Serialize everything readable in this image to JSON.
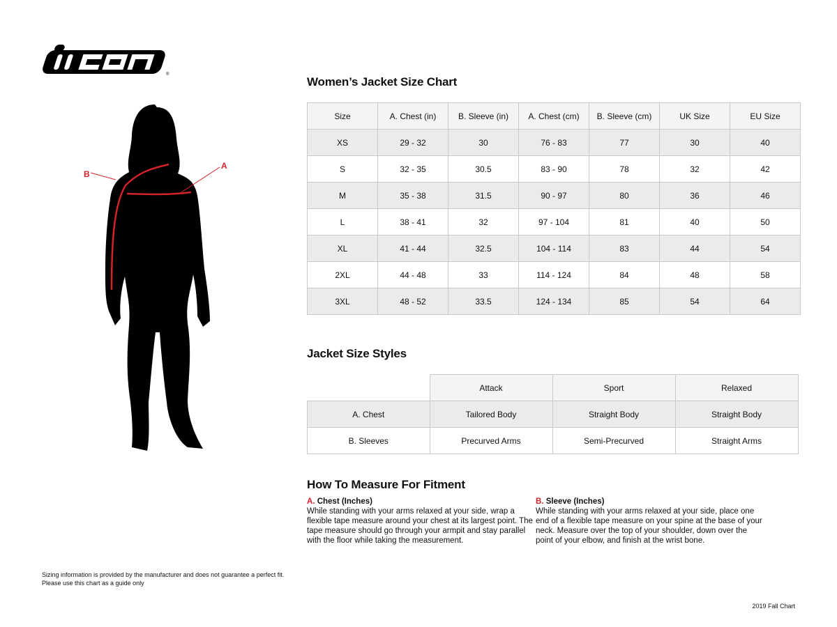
{
  "brand": {
    "logo_text": "icon"
  },
  "figure": {
    "label_a": "A",
    "label_b": "B",
    "accent_color": "#d2232a"
  },
  "size_chart": {
    "title": "Women’s Jacket Size Chart",
    "headers": [
      "Size",
      "A. Chest (in)",
      "B. Sleeve (in)",
      "A. Chest (cm)",
      "B. Sleeve (cm)",
      "UK Size",
      "EU Size"
    ],
    "rows": [
      [
        "XS",
        "29 - 32",
        "30",
        "76 - 83",
        "77",
        "30",
        "40"
      ],
      [
        "S",
        "32 - 35",
        "30.5",
        "83 - 90",
        "78",
        "32",
        "42"
      ],
      [
        "M",
        "35 - 38",
        "31.5",
        "90 - 97",
        "80",
        "36",
        "46"
      ],
      [
        "L",
        "38 - 41",
        "32",
        "97 - 104",
        "81",
        "40",
        "50"
      ],
      [
        "XL",
        "41 - 44",
        "32.5",
        "104 - 114",
        "83",
        "44",
        "54"
      ],
      [
        "2XL",
        "44 - 48",
        "33",
        "114 - 124",
        "84",
        "48",
        "58"
      ],
      [
        "3XL",
        "48 - 52",
        "33.5",
        "124 - 134",
        "85",
        "54",
        "64"
      ]
    ]
  },
  "styles": {
    "title": "Jacket Size Styles",
    "headers": [
      "Attack",
      "Sport",
      "Relaxed"
    ],
    "rows": [
      [
        "A. Chest",
        "Tailored Body",
        "Straight Body",
        "Straight Body"
      ],
      [
        "B. Sleeves",
        "Precurved Arms",
        "Semi-Precurved",
        "Straight Arms"
      ]
    ]
  },
  "measure": {
    "title": "How To Measure For Fitment",
    "chest": {
      "prefix": "A.",
      "label": "Chest (Inches)",
      "text": "While standing with your arms relaxed at your side, wrap a flexible tape measure around your chest at its largest point. The tape measure should go through your armpit and stay parallel with the floor while taking the measurement."
    },
    "sleeve": {
      "prefix": "B.",
      "label": "Sleeve (Inches)",
      "text": "While standing with your arms relaxed at your side, place one end of a flexible tape measure on your spine at the base of your neck. Measure over the top of your shoulder, down over the point of your elbow, and finish at the wrist bone."
    }
  },
  "footer": {
    "disclaimer_1": "Sizing information is provided by the manufacturer and does not guarantee a perfect fit.",
    "disclaimer_2": "Please use this chart as a guide only",
    "edition": "2019 Fall Chart"
  }
}
